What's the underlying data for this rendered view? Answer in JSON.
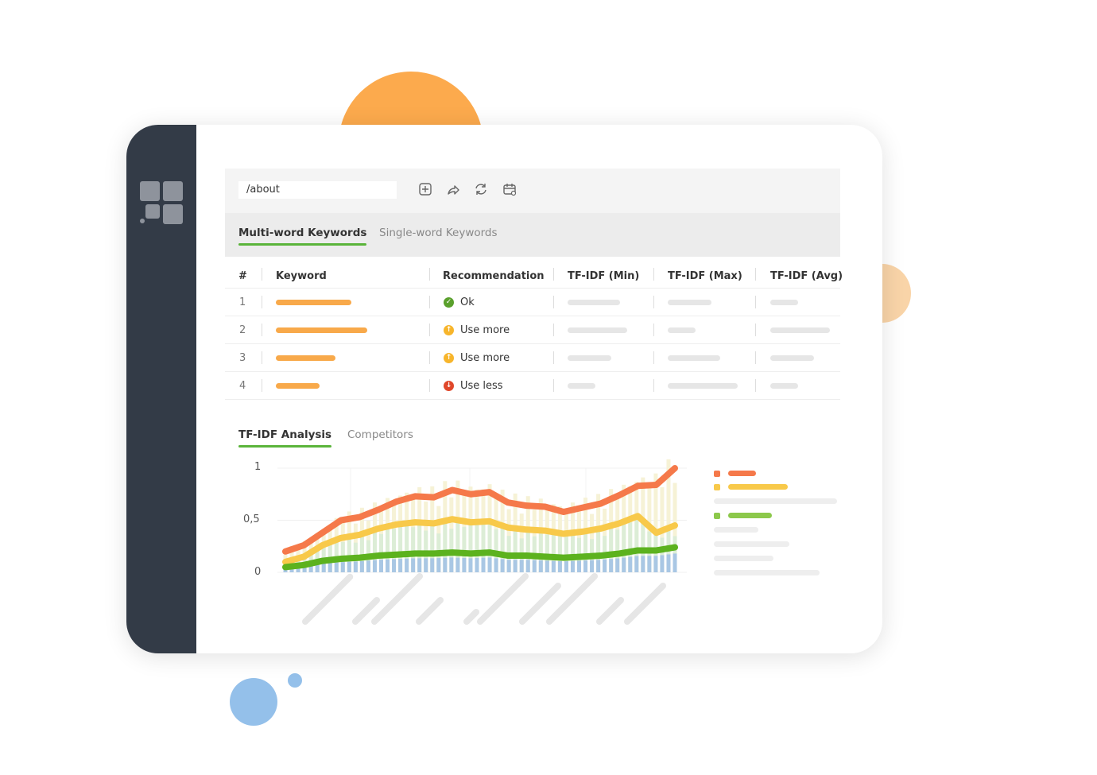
{
  "colors": {
    "sidebar": "#333b47",
    "accent": "#5ab43a",
    "orange": "#f5794a",
    "yellow": "#f8c94a",
    "green": "#5cb21e",
    "blue": "#a9c7e4",
    "placeholder": "#e6e6e6"
  },
  "toolbar": {
    "path": "/about",
    "icons": [
      "add-icon",
      "share-icon",
      "refresh-icon",
      "calendar-icon"
    ]
  },
  "tabs": [
    {
      "label": "Multi-word Keywords",
      "active": true
    },
    {
      "label": "Single-word Keywords",
      "active": false
    }
  ],
  "table": {
    "headers": [
      "#",
      "Keyword",
      "Recommendation",
      "TF-IDF (Min)",
      "TF-IDF (Max)",
      "TF-IDF (Avg)"
    ],
    "rows": [
      {
        "num": "1",
        "recommendation": "Ok",
        "status": "ok",
        "icon": "check-circle-icon",
        "color": "#5aa02c"
      },
      {
        "num": "2",
        "recommendation": "Use more",
        "status": "more",
        "icon": "arrow-up-circle-icon",
        "color": "#f7b52b"
      },
      {
        "num": "3",
        "recommendation": "Use more",
        "status": "more",
        "icon": "arrow-up-circle-icon",
        "color": "#f7b52b"
      },
      {
        "num": "4",
        "recommendation": "Use less",
        "status": "less",
        "icon": "arrow-down-circle-icon",
        "color": "#e0472a"
      }
    ]
  },
  "analysis_tabs": [
    {
      "label": "TF-IDF Analysis",
      "active": true
    },
    {
      "label": "Competitors",
      "active": false
    }
  ],
  "chart_data": {
    "type": "line",
    "ylim": [
      0,
      1
    ],
    "yticks": [
      "1",
      "0,5",
      "0"
    ],
    "grid": true,
    "legend": "right",
    "series": [
      {
        "color": "#f5794a",
        "values": [
          0.2,
          0.26,
          0.38,
          0.5,
          0.53,
          0.6,
          0.68,
          0.73,
          0.72,
          0.79,
          0.75,
          0.77,
          0.67,
          0.64,
          0.63,
          0.58,
          0.62,
          0.66,
          0.74,
          0.83,
          0.84,
          1.0
        ]
      },
      {
        "color": "#f8c94a",
        "values": [
          0.1,
          0.15,
          0.26,
          0.33,
          0.36,
          0.42,
          0.46,
          0.48,
          0.47,
          0.51,
          0.48,
          0.49,
          0.43,
          0.41,
          0.4,
          0.37,
          0.39,
          0.42,
          0.47,
          0.54,
          0.38,
          0.45
        ]
      },
      {
        "color": "#5cb21e",
        "values": [
          0.05,
          0.07,
          0.11,
          0.13,
          0.14,
          0.16,
          0.17,
          0.18,
          0.18,
          0.19,
          0.18,
          0.19,
          0.16,
          0.16,
          0.15,
          0.14,
          0.15,
          0.16,
          0.18,
          0.21,
          0.21,
          0.24
        ]
      }
    ]
  }
}
